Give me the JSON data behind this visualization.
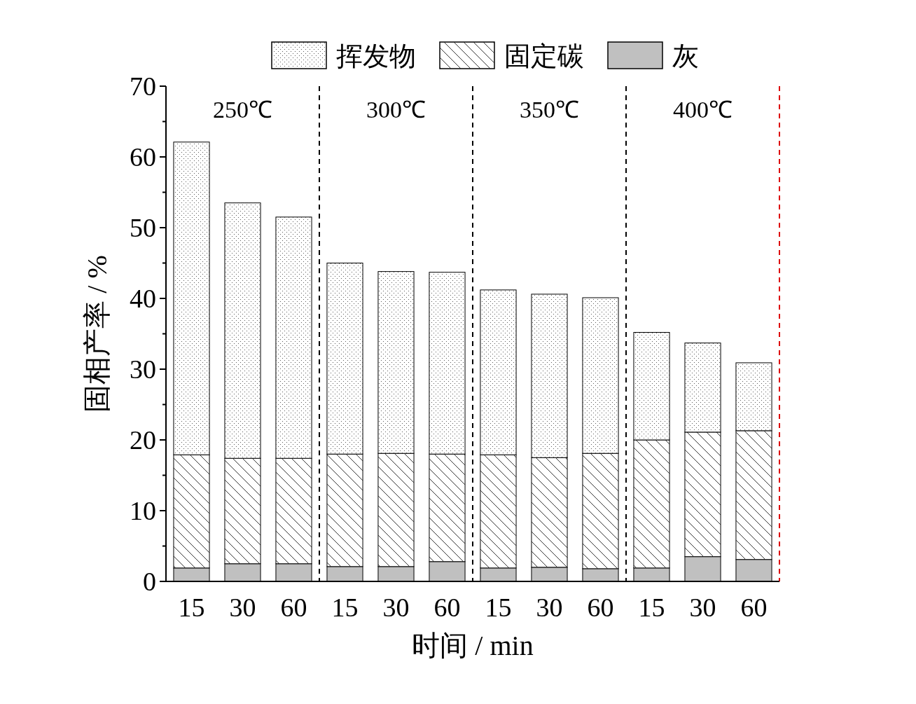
{
  "chart_data": {
    "type": "bar",
    "stacked": true,
    "xlabel": "时间 / min",
    "ylabel": "固相产率 / %",
    "categories": [
      "15",
      "30",
      "60",
      "15",
      "30",
      "60",
      "15",
      "30",
      "60",
      "15",
      "30",
      "60"
    ],
    "series": [
      {
        "name": "灰",
        "color": "#c0c0c0",
        "values": [
          1.9,
          2.5,
          2.5,
          2.1,
          2.1,
          2.8,
          1.9,
          2.0,
          1.8,
          1.9,
          3.5,
          3.1
        ]
      },
      {
        "name": "固定碳",
        "color": "#ffffff",
        "values": [
          16.0,
          14.9,
          14.9,
          15.9,
          16.0,
          15.2,
          16.0,
          15.5,
          16.3,
          18.1,
          17.6,
          18.2
        ]
      },
      {
        "name": "挥发物",
        "color": "#ffffff",
        "values": [
          44.2,
          36.1,
          34.1,
          27.0,
          25.7,
          25.7,
          23.3,
          23.1,
          22.0,
          15.2,
          12.6,
          9.6
        ]
      }
    ],
    "ylim": [
      0,
      70
    ],
    "yticks": [
      0,
      {
        "value": 5,
        "label": null
      },
      10,
      {
        "value": 15,
        "label": null
      },
      20,
      {
        "value": 25,
        "label": null
      },
      30,
      {
        "value": 35,
        "label": null
      },
      40,
      {
        "value": 45,
        "label": null
      },
      50,
      {
        "value": 55,
        "label": null
      },
      60,
      {
        "value": 65,
        "label": null
      },
      70
    ],
    "annotations": [
      "250℃",
      "300℃",
      "350℃",
      "400℃"
    ],
    "legend": "top",
    "grid": false
  }
}
